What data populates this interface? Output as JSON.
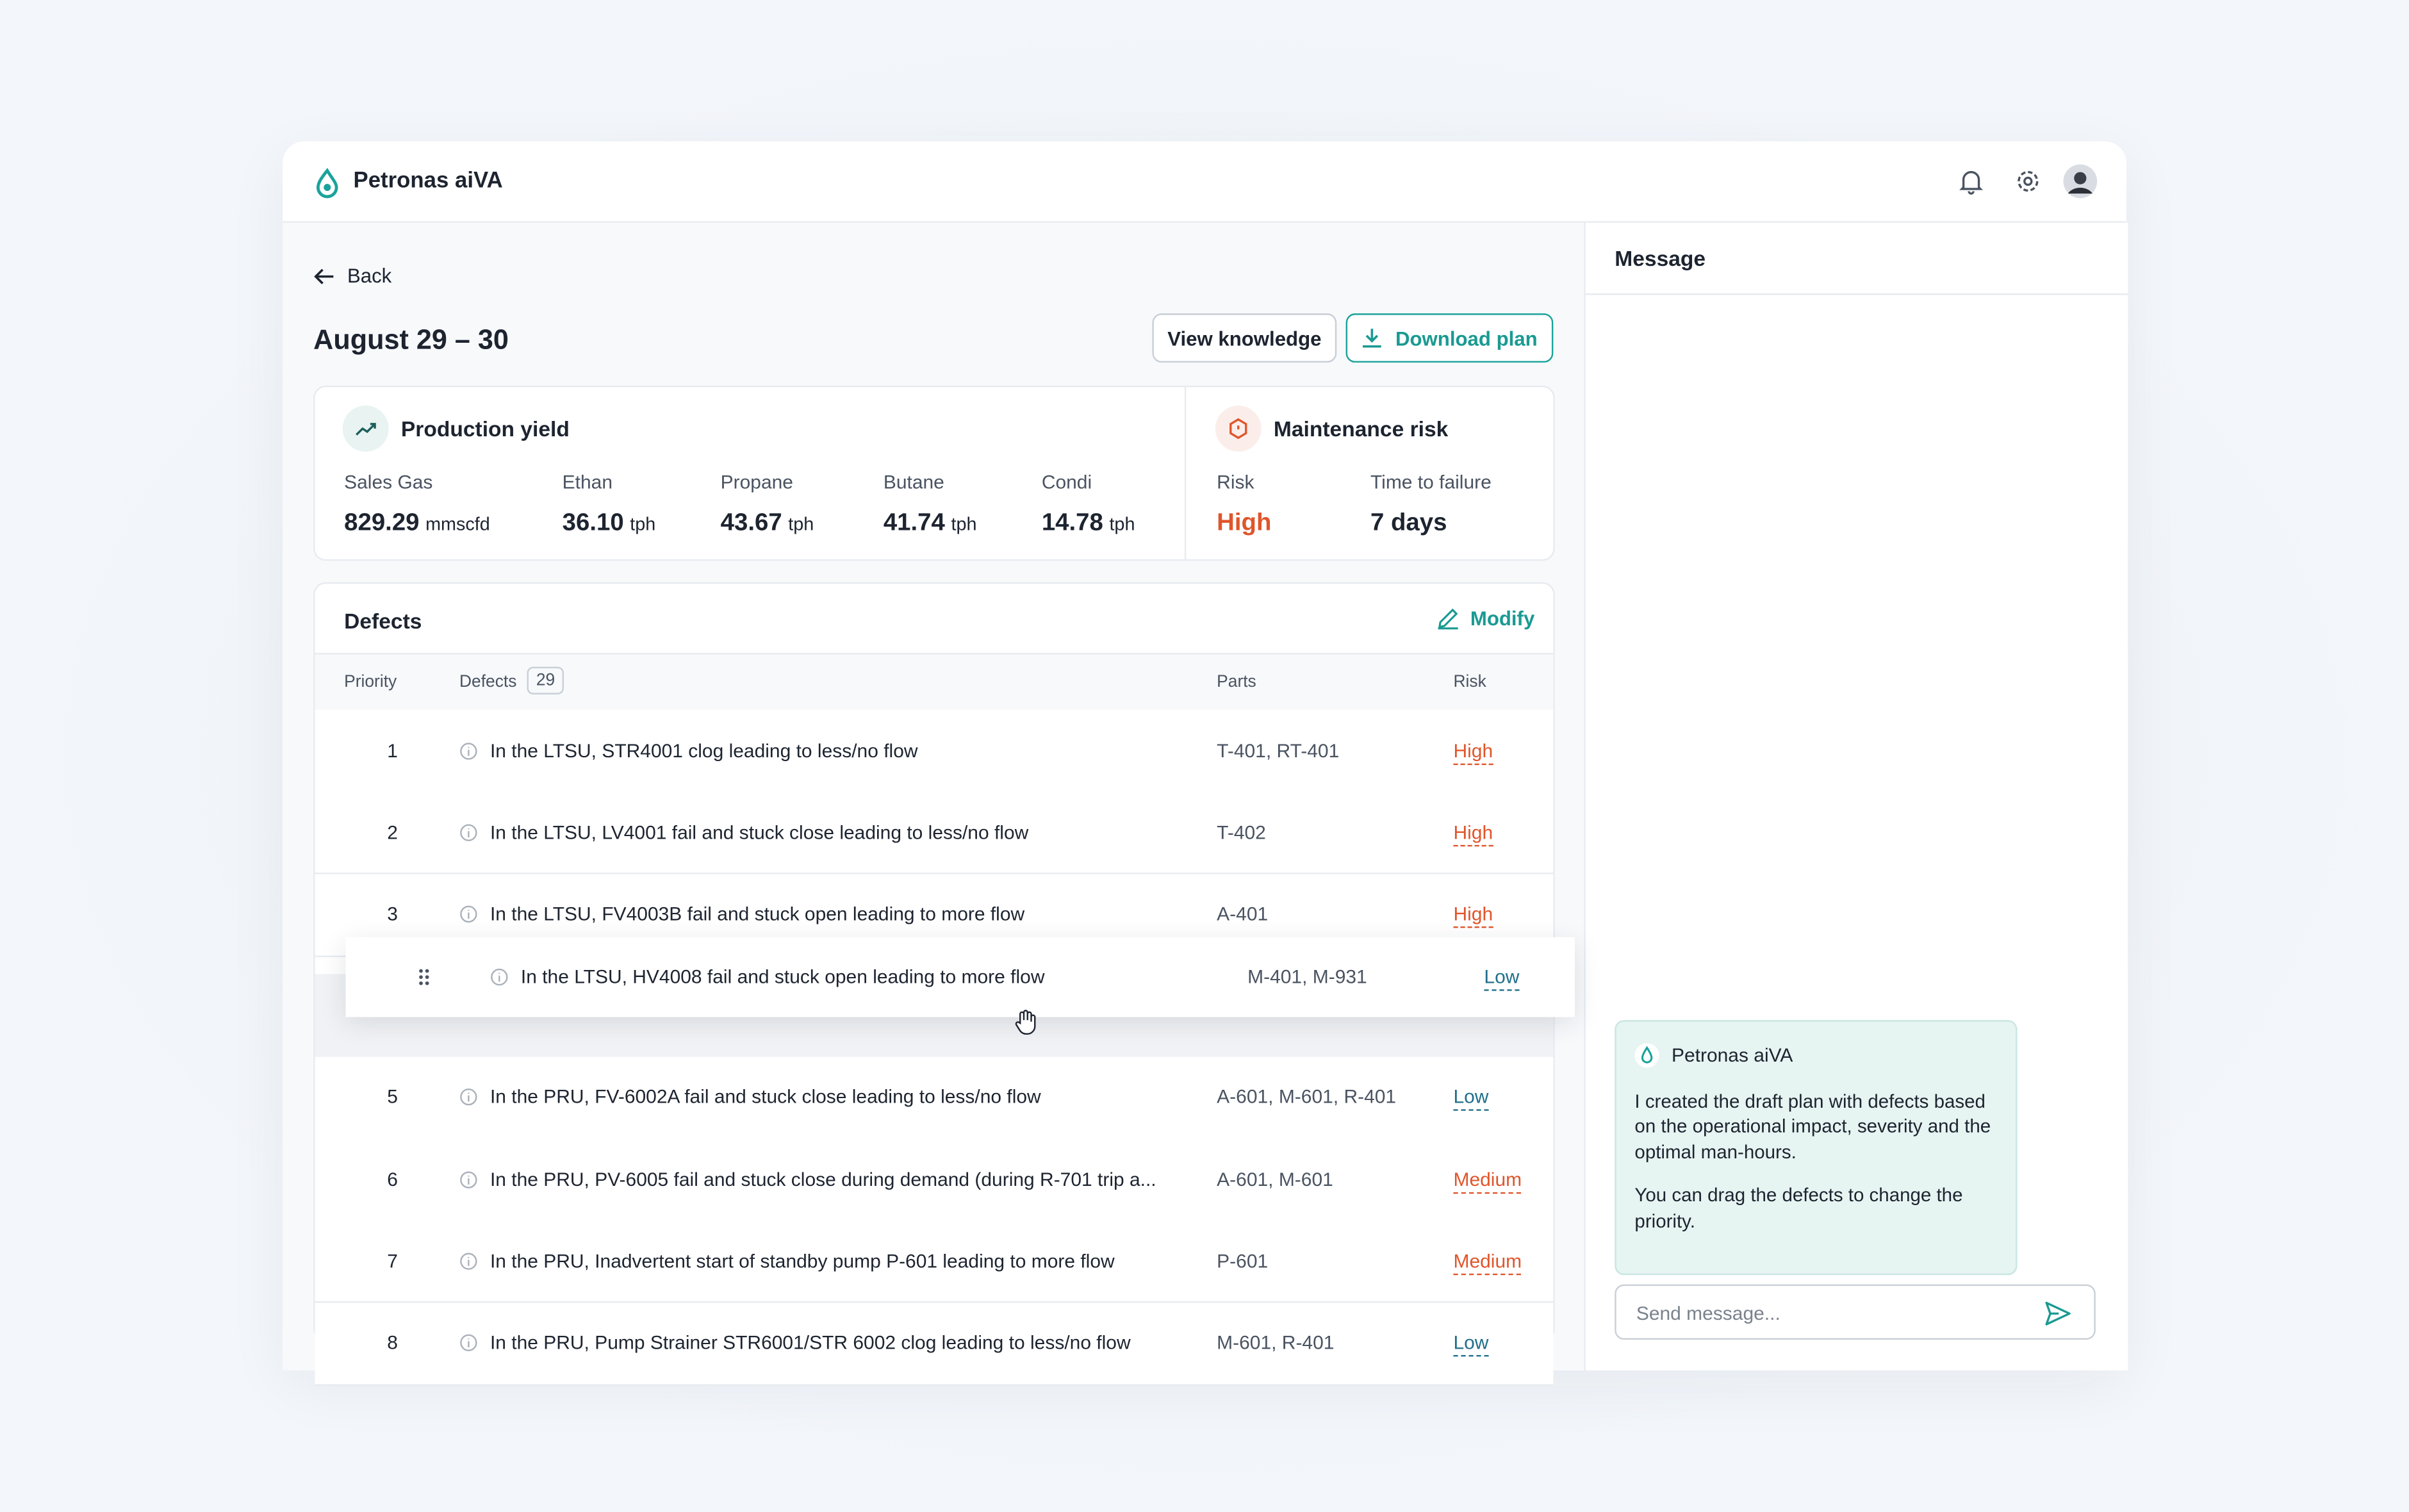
{
  "header": {
    "app_name": "Petronas aiVA"
  },
  "back": "Back",
  "title": "August 29 – 30",
  "actions": {
    "view_knowledge": "View knowledge",
    "download_plan": "Download plan"
  },
  "production": {
    "title": "Production yield",
    "metrics": [
      {
        "label": "Sales Gas",
        "value": "829.29",
        "unit": "mmscfd"
      },
      {
        "label": "Ethan",
        "value": "36.10",
        "unit": "tph"
      },
      {
        "label": "Propane",
        "value": "43.67",
        "unit": "tph"
      },
      {
        "label": "Butane",
        "value": "41.74",
        "unit": "tph"
      },
      {
        "label": "Condi",
        "value": "14.78",
        "unit": "tph"
      }
    ]
  },
  "maintenance": {
    "title": "Maintenance risk",
    "risk_label": "Risk",
    "risk_value": "High",
    "ttf_label": "Time to failure",
    "ttf_value": "7 days"
  },
  "defects": {
    "title": "Defects",
    "modify": "Modify",
    "columns": {
      "priority": "Priority",
      "defects": "Defects",
      "count": "29",
      "parts": "Parts",
      "risk": "Risk"
    },
    "rows": [
      {
        "priority": "1",
        "text": "In the LTSU, STR4001 clog leading to less/no flow",
        "parts": "T-401, RT-401",
        "risk": "High",
        "risk_color": "#e0552b"
      },
      {
        "priority": "2",
        "text": "In the LTSU, LV4001 fail and stuck close leading to less/no flow",
        "parts": "T-402",
        "risk": "High",
        "risk_color": "#e0552b"
      },
      {
        "priority": "3",
        "text": "In the LTSU, FV4003B fail and stuck open leading to more flow",
        "parts": "A-401",
        "risk": "High",
        "risk_color": "#e0552b"
      },
      {
        "text": "In the LTSU, HV4008 fail and stuck open leading to more flow",
        "parts": "M-401, M-931",
        "risk": "Low",
        "risk_color": "#1f6f8b",
        "dragging": true
      },
      {
        "priority": "5",
        "text": "In the PRU, FV-6002A fail and stuck close leading to less/no flow",
        "parts": "A-601, M-601, R-401",
        "risk": "Low",
        "risk_color": "#1f6f8b"
      },
      {
        "priority": "6",
        "text": "In the PRU, PV-6005 fail and stuck close during demand (during R-701 trip a...",
        "parts": "A-601, M-601",
        "risk": "Medium",
        "risk_color": "#e0552b"
      },
      {
        "priority": "7",
        "text": "In the PRU, Inadvertent start of standby pump P-601 leading to more flow",
        "parts": "P-601",
        "risk": "Medium",
        "risk_color": "#e0552b"
      },
      {
        "priority": "8",
        "text": "In the PRU, Pump Strainer STR6001/STR 6002 clog leading to less/no flow",
        "parts": "M-601, R-401",
        "risk": "Low",
        "risk_color": "#1f6f8b"
      }
    ]
  },
  "message": {
    "title": "Message",
    "bot_name": "Petronas aiVA",
    "paragraphs": [
      "I created the draft plan with defects based on the operational impact, severity and the optimal man-hours.",
      "You can drag the defects to change the priority."
    ],
    "placeholder": "Send message..."
  }
}
